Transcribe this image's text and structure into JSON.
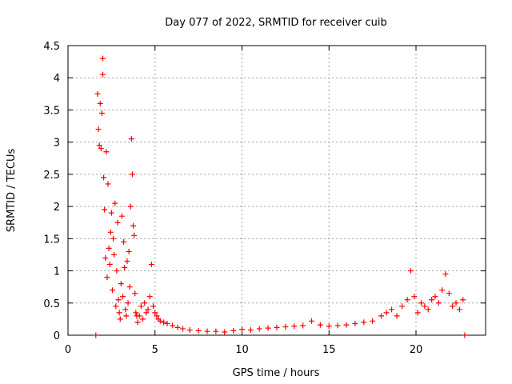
{
  "chart_data": {
    "type": "scatter",
    "title": "Day 077 of 2022, SRMTID for receiver cuib",
    "xlabel": "GPS time / hours",
    "ylabel": "SRMTID / TECUs",
    "xlim": [
      0,
      24
    ],
    "ylim": [
      0,
      4.5
    ],
    "x_ticks": [
      0,
      5,
      10,
      15,
      20
    ],
    "x_tick_labels": [
      "0",
      "5",
      "10",
      "15",
      "20"
    ],
    "y_ticks": [
      0,
      0.5,
      1,
      1.5,
      2,
      2.5,
      3,
      3.5,
      4,
      4.5
    ],
    "y_tick_labels": [
      "0",
      "0.5",
      "1",
      "1.5",
      "2",
      "2.5",
      "3",
      "3.5",
      "4",
      "4.5"
    ],
    "grid": true,
    "marker": "plus",
    "color": "#ff0000",
    "series": [
      {
        "name": "SRMTID",
        "x": [
          1.6,
          1.7,
          1.75,
          1.8,
          1.85,
          1.9,
          1.95,
          2.0,
          2.0,
          2.05,
          2.1,
          2.15,
          2.2,
          2.25,
          2.3,
          2.35,
          2.4,
          2.45,
          2.5,
          2.55,
          2.6,
          2.65,
          2.7,
          2.75,
          2.8,
          2.85,
          2.9,
          2.95,
          3.0,
          3.05,
          3.1,
          3.15,
          3.2,
          3.25,
          3.3,
          3.35,
          3.4,
          3.45,
          3.5,
          3.55,
          3.6,
          3.65,
          3.7,
          3.75,
          3.8,
          3.85,
          3.9,
          3.95,
          4.0,
          4.1,
          4.2,
          4.3,
          4.4,
          4.5,
          4.6,
          4.7,
          4.8,
          4.9,
          5.0,
          5.1,
          5.2,
          5.3,
          5.5,
          5.7,
          6.0,
          6.3,
          6.6,
          7.0,
          7.5,
          8.0,
          8.5,
          9.0,
          9.5,
          10.0,
          10.5,
          11.0,
          11.5,
          12.0,
          12.5,
          13.0,
          13.5,
          14.0,
          14.5,
          15.0,
          15.5,
          16.0,
          16.5,
          17.0,
          17.5,
          18.0,
          18.3,
          18.6,
          18.9,
          19.2,
          19.5,
          19.7,
          19.9,
          20.1,
          20.3,
          20.5,
          20.7,
          20.9,
          21.1,
          21.3,
          21.5,
          21.7,
          21.9,
          22.1,
          22.3,
          22.5,
          22.7,
          22.8
        ],
        "y": [
          0.0,
          3.75,
          3.2,
          2.95,
          3.6,
          2.9,
          3.45,
          4.05,
          4.3,
          2.45,
          1.95,
          1.2,
          2.85,
          0.9,
          2.35,
          1.35,
          1.1,
          1.6,
          1.9,
          0.7,
          1.5,
          1.25,
          2.05,
          0.45,
          1.0,
          1.75,
          0.55,
          0.35,
          0.25,
          0.8,
          1.85,
          0.6,
          1.45,
          1.05,
          0.4,
          0.3,
          1.15,
          0.5,
          1.3,
          0.75,
          2.0,
          3.05,
          2.5,
          1.7,
          1.55,
          0.65,
          0.35,
          0.3,
          0.2,
          0.3,
          0.45,
          0.25,
          0.5,
          0.35,
          0.4,
          0.6,
          1.1,
          0.45,
          0.35,
          0.3,
          0.25,
          0.22,
          0.2,
          0.18,
          0.15,
          0.12,
          0.1,
          0.08,
          0.07,
          0.06,
          0.06,
          0.05,
          0.07,
          0.09,
          0.08,
          0.1,
          0.11,
          0.12,
          0.13,
          0.14,
          0.15,
          0.22,
          0.16,
          0.14,
          0.15,
          0.16,
          0.18,
          0.2,
          0.22,
          0.3,
          0.35,
          0.4,
          0.3,
          0.45,
          0.55,
          1.0,
          0.6,
          0.35,
          0.5,
          0.45,
          0.4,
          0.55,
          0.6,
          0.5,
          0.7,
          0.95,
          0.65,
          0.45,
          0.5,
          0.4,
          0.55,
          0.0
        ]
      }
    ]
  }
}
